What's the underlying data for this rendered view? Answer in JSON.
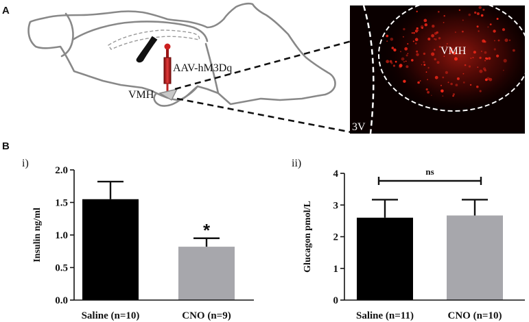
{
  "panel_labels": {
    "a": "A",
    "b": "B",
    "i": "i)",
    "ii": "ii)"
  },
  "schematic": {
    "virus_label": "AAV-hM3Dq",
    "region_label": "VMH",
    "micrograph_region_label": "VMH",
    "ventricle_label": "3V"
  },
  "colors": {
    "saline": "#000000",
    "cno": "#a7a7ac",
    "injector": "#cc2222",
    "brain_outline": "#888888",
    "micrograph_bg": "#0a0000",
    "fluorescence": "#ff2a1a"
  },
  "chart_data": [
    {
      "type": "bar",
      "panel": "i)",
      "ylabel": "Insulin ng/ml",
      "categories": [
        "Saline (n=10)",
        "CNO (n=9)"
      ],
      "values": [
        1.55,
        0.82
      ],
      "errors": [
        0.27,
        0.13
      ],
      "colors": [
        "#000000",
        "#a7a7ac"
      ],
      "ylim": [
        0.0,
        2.0
      ],
      "yticks": [
        "0.0",
        "0.5",
        "1.0",
        "1.5",
        "2.0"
      ],
      "significance": {
        "bar_index": 1,
        "symbol": "*"
      }
    },
    {
      "type": "bar",
      "panel": "ii)",
      "ylabel": "Glucagon pmol/L",
      "categories": [
        "Saline (n=11)",
        "CNO (n=10)"
      ],
      "values": [
        2.6,
        2.67
      ],
      "errors": [
        0.57,
        0.5
      ],
      "colors": [
        "#000000",
        "#a7a7ac"
      ],
      "ylim": [
        0,
        4
      ],
      "yticks": [
        "0",
        "1",
        "2",
        "3",
        "4"
      ],
      "comparison": {
        "label": "ns",
        "between": [
          0,
          1
        ]
      }
    }
  ]
}
